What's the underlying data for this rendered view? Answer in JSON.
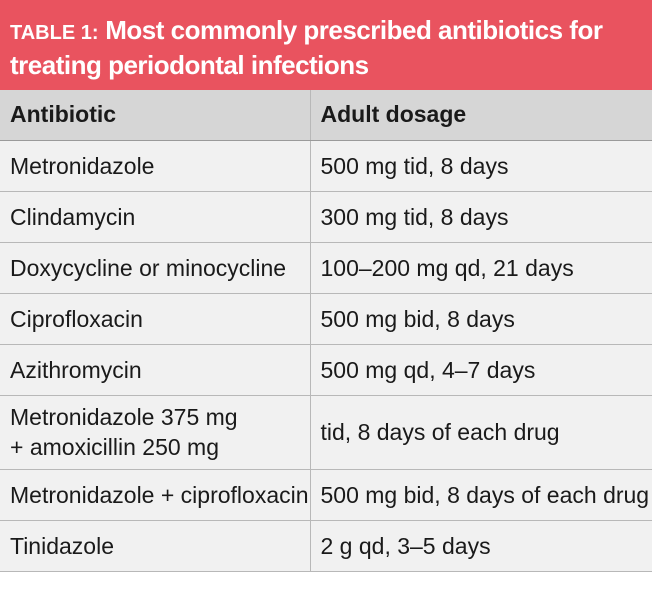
{
  "title": {
    "label": "TABLE 1:",
    "text": "Most commonly prescribed antibiotics for treating periodontal infections"
  },
  "table": {
    "headers": [
      "Antibiotic",
      "Adult dosage"
    ],
    "rows": [
      [
        "Metronidazole",
        "500 mg tid, 8 days"
      ],
      [
        "Clindamycin",
        "300 mg tid, 8 days"
      ],
      [
        "Doxycycline or minocycline",
        "100–200 mg qd, 21 days"
      ],
      [
        "Ciprofloxacin",
        "500 mg bid, 8 days"
      ],
      [
        "Azithromycin",
        "500 mg qd, 4–7 days"
      ],
      [
        "Metronidazole 375 mg\n+ amoxicillin 250 mg",
        "tid, 8 days of each drug"
      ],
      [
        "Metronidazole + ciprofloxacin",
        "500 mg bid, 8 days of each drug"
      ],
      [
        "Tinidazole",
        "2 g qd, 3–5 days"
      ]
    ]
  },
  "colors": {
    "title_background": "#e9535f",
    "header_background": "#d6d6d6",
    "row_background": "#f1f1f1"
  }
}
